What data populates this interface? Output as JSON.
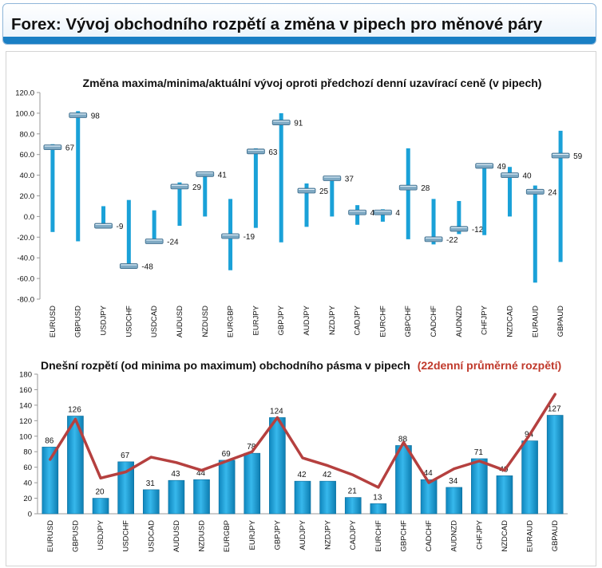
{
  "header": {
    "title": "Forex: Vývoj obchodního rozpětí a změna v pipech pro měnové páry"
  },
  "chart_data": [
    {
      "type": "bar",
      "title": "Změna maxima/minima/aktuální vývoj oproti předchozí denní uzavírací ceně (v pipech)",
      "categories": [
        "EURUSD",
        "GBPUSD",
        "USDJPY",
        "USDCHF",
        "USDCAD",
        "AUDUSD",
        "NZDUSD",
        "EURGBP",
        "EURJPY",
        "GBPJPY",
        "AUDJPY",
        "NZDJPY",
        "CADJPY",
        "EURCHF",
        "GBPCHF",
        "CADCHF",
        "AUDNZD",
        "CHFJPY",
        "NZDCAD",
        "EURAUD",
        "GBPAUD"
      ],
      "series": [
        {
          "name": "",
          "values": [
            70,
            102,
            10,
            16,
            6,
            33,
            42,
            17,
            66,
            100,
            32,
            39,
            11,
            7,
            66,
            17,
            15,
            51,
            48,
            30,
            83
          ]
        },
        {
          "name": "",
          "values": [
            -15,
            -24,
            -10,
            -50,
            -25,
            -9,
            0,
            -52,
            -11,
            -25,
            -10,
            0,
            -8,
            -5,
            -22,
            -27,
            -17,
            -18,
            0,
            -64,
            -44
          ]
        },
        {
          "name": "",
          "values": [
            67,
            98,
            -9,
            -48,
            -24,
            29,
            41,
            -19,
            63,
            91,
            25,
            37,
            4,
            4,
            28,
            -22,
            -12,
            49,
            40,
            24,
            59
          ]
        }
      ],
      "data_labels": [
        "67",
        "98",
        "-9",
        "-48",
        "-24",
        "29",
        "41",
        "-19",
        "63",
        "91",
        "25",
        "37",
        "4",
        "4",
        "28",
        "-22",
        "-12",
        "49",
        "40",
        "24",
        "59"
      ],
      "ylim": [
        -80,
        120
      ],
      "yticks": [
        "-80.0",
        "-60.0",
        "-40.0",
        "-20.0",
        "0.0",
        "20.0",
        "40.0",
        "60.0",
        "80.0",
        "100.0",
        "120.0"
      ],
      "colors": {
        "range": "#1aa1d8",
        "current": "#7fa9c3"
      }
    },
    {
      "type": "bar",
      "title": "Dnešní rozpětí (od minima po maximum) obchodního pásma v pipech",
      "title_highlight": "(22denní průměrné rozpětí)",
      "categories": [
        "EURUSD",
        "GBPUSD",
        "USDJPY",
        "USDCHF",
        "USDCAD",
        "AUDUSD",
        "NZDUSD",
        "EURGBP",
        "EURJPY",
        "GBPJPY",
        "AUDJPY",
        "NZDJPY",
        "CADJPY",
        "EURCHF",
        "GBPCHF",
        "CADCHF",
        "AUDNZD",
        "CHFJPY",
        "NZDCAD",
        "EURAUD",
        "GBPAUD"
      ],
      "series": [
        {
          "name": "",
          "type": "bar",
          "values": [
            86,
            126,
            20,
            67,
            31,
            43,
            44,
            69,
            78,
            124,
            42,
            42,
            21,
            13,
            88,
            44,
            34,
            71,
            49,
            94,
            127
          ]
        },
        {
          "name": "",
          "type": "line",
          "values": [
            70,
            122,
            46,
            54,
            73,
            66,
            56,
            68,
            80,
            124,
            72,
            62,
            50,
            34,
            92,
            40,
            58,
            68,
            56,
            102,
            154
          ]
        }
      ],
      "data_labels": [
        "86",
        "126",
        "20",
        "67",
        "31",
        "43",
        "44",
        "69",
        "78",
        "124",
        "42",
        "42",
        "21",
        "13",
        "88",
        "44",
        "34",
        "71",
        "49",
        "94",
        "127"
      ],
      "ylim": [
        0,
        180
      ],
      "yticks": [
        "0",
        "20",
        "40",
        "60",
        "80",
        "100",
        "120",
        "140",
        "160",
        "180"
      ],
      "colors": {
        "bar": "#1aa1d8",
        "line": "#b5403f",
        "highlight": "#c0392b"
      }
    }
  ]
}
